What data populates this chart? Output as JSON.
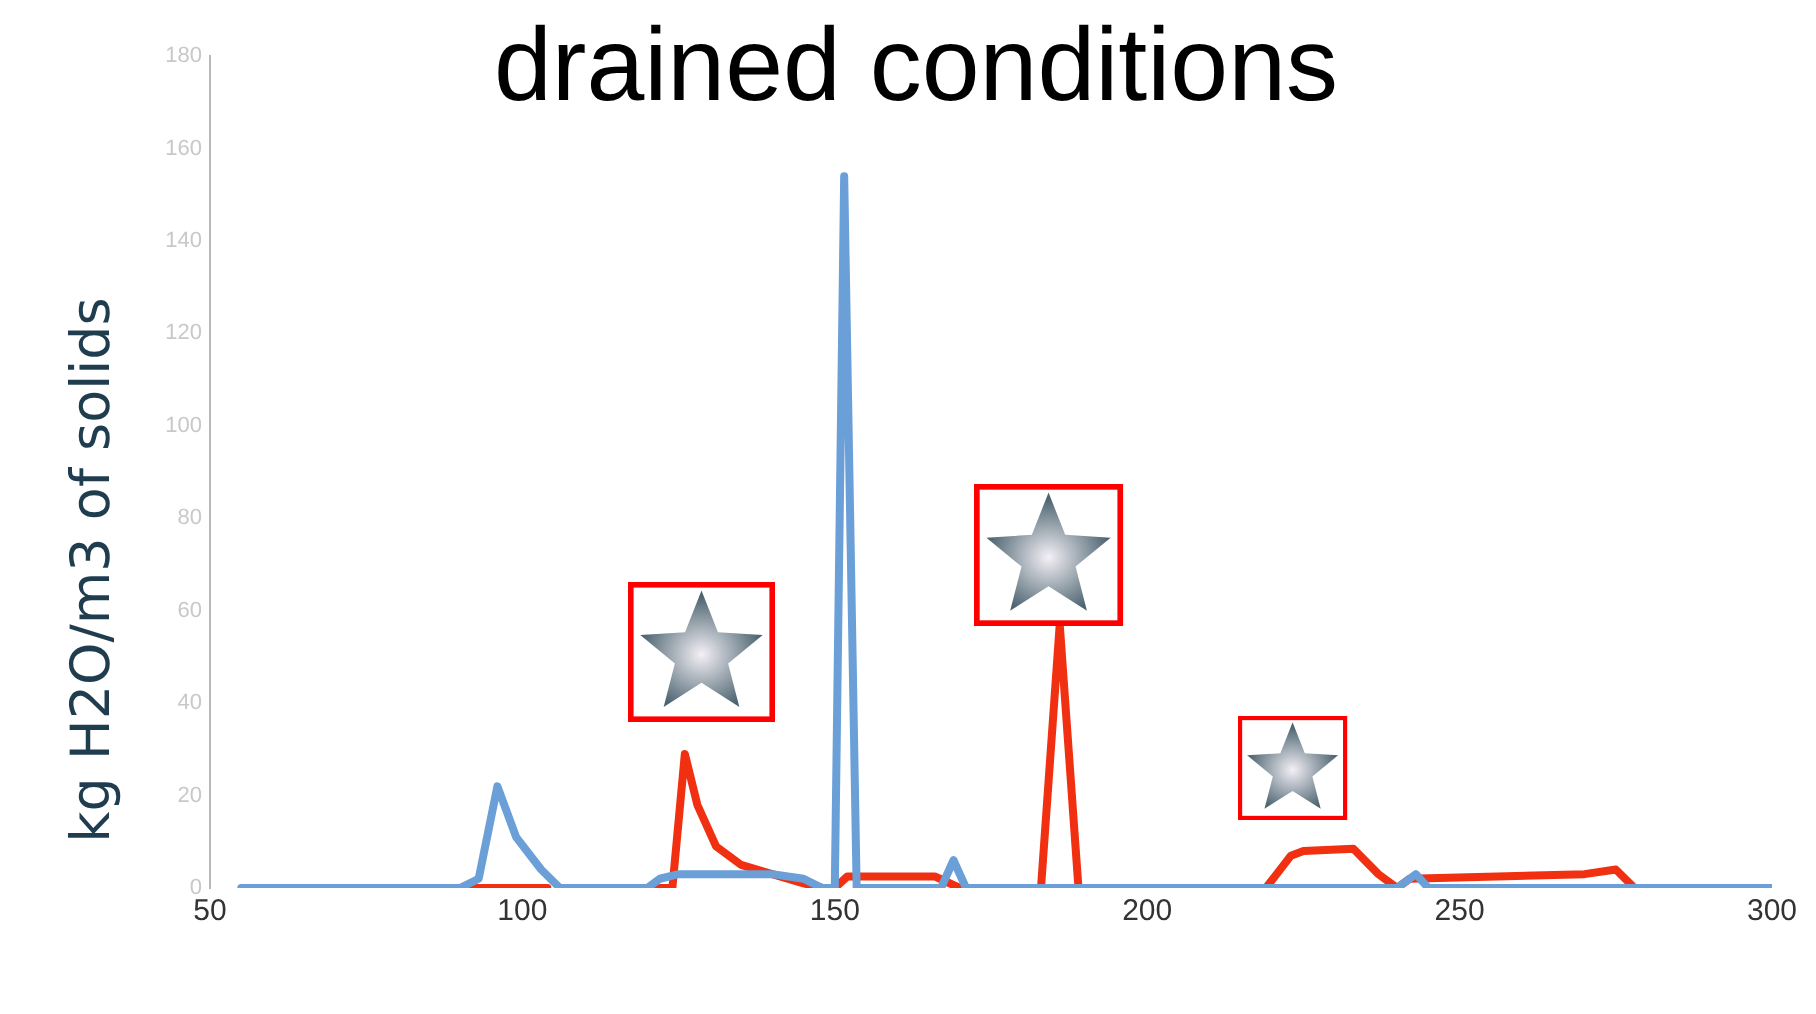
{
  "chart_data": {
    "type": "line",
    "title": "drained conditions",
    "ylabel": "kg H2O/m3 of solids",
    "xlim": [
      50,
      300
    ],
    "xticks": [
      50,
      100,
      150,
      200,
      250,
      300
    ],
    "ylim": [
      0,
      180
    ],
    "yticks": [
      0,
      20,
      40,
      60,
      80,
      100,
      120,
      140,
      160,
      180
    ],
    "grid": false,
    "legend": false,
    "marker": "none",
    "line_style": "solid",
    "series": [
      {
        "color": "#6a9fd8",
        "x": [
          55,
          90,
          93,
          96,
          99,
          103,
          106,
          120,
          122,
          125,
          140,
          145,
          148,
          150,
          151.5,
          153.5,
          160,
          167,
          169,
          171,
          240,
          243,
          245,
          300
        ],
        "values": [
          0,
          0,
          2,
          22,
          11,
          4,
          0,
          0,
          2,
          3,
          3,
          2,
          0,
          0,
          154,
          0,
          0,
          0,
          6,
          0,
          0,
          3,
          0,
          0
        ]
      },
      {
        "color": "#f03010",
        "x": [
          90,
          104,
          110,
          120,
          124,
          126,
          128,
          131,
          135,
          140,
          145,
          148,
          150,
          152,
          166,
          170,
          183,
          186,
          189,
          219,
          223,
          225,
          233,
          237,
          240,
          242,
          270,
          275,
          278
        ],
        "values": [
          0,
          0,
          null,
          0,
          0,
          29,
          18,
          9,
          5,
          3,
          1,
          0,
          0,
          2.5,
          2.5,
          0,
          0,
          57,
          0,
          0,
          7,
          8,
          8.5,
          3,
          0,
          2,
          3,
          4,
          0
        ]
      }
    ]
  }
}
